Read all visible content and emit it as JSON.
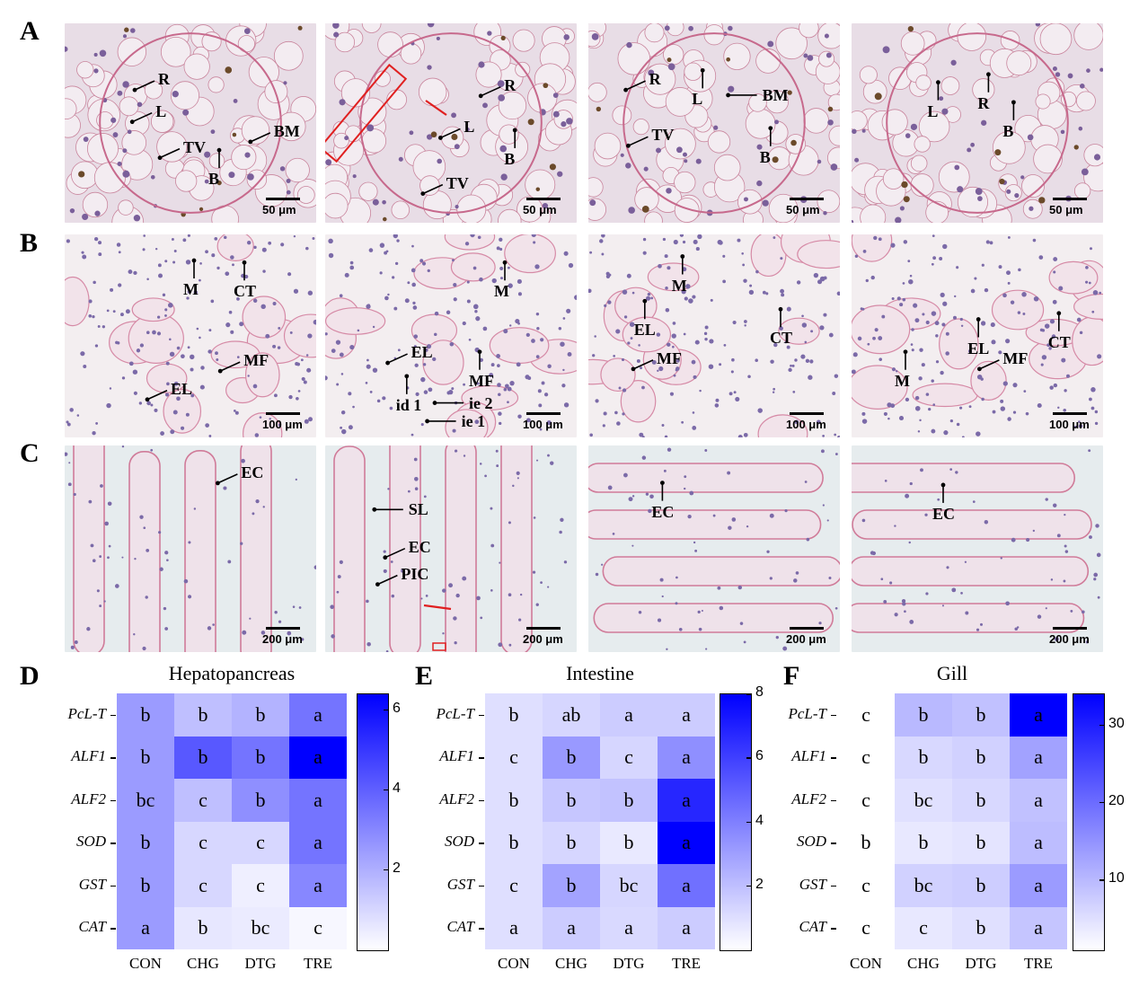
{
  "panel_labels": {
    "A": "A",
    "B": "B",
    "C": "C",
    "D": "D",
    "E": "E",
    "F": "F"
  },
  "micrographs": {
    "A": {
      "scale": "50 μm",
      "images": [
        {
          "labels": [
            "R",
            "L",
            "TV",
            "B",
            "BM"
          ]
        },
        {
          "labels": [
            "R",
            "L",
            "B",
            "TV"
          ]
        },
        {
          "labels": [
            "R",
            "L",
            "TV",
            "BM",
            "B"
          ]
        },
        {
          "labels": [
            "L",
            "R",
            "B"
          ]
        }
      ]
    },
    "B": {
      "scale": "100 μm",
      "images": [
        {
          "labels": [
            "M",
            "CT",
            "MF",
            "EL"
          ]
        },
        {
          "labels": [
            "M",
            "EL",
            "MF",
            "id 1",
            "ie 2",
            "ie 1"
          ]
        },
        {
          "labels": [
            "M",
            "EL",
            "MF",
            "CT"
          ]
        },
        {
          "labels": [
            "M",
            "EL",
            "MF",
            "CT"
          ]
        }
      ]
    },
    "C": {
      "scale": "200 μm",
      "images": [
        {
          "labels": [
            "EC"
          ]
        },
        {
          "labels": [
            "SL",
            "EC",
            "PIC"
          ]
        },
        {
          "labels": [
            "EC"
          ]
        },
        {
          "labels": [
            "EC"
          ]
        }
      ]
    }
  },
  "chart_data": [
    {
      "type": "heatmap",
      "title": "Hepatopancreas",
      "groups": [
        "CON",
        "CHG",
        "DTG",
        "TRE"
      ],
      "genes": [
        "PcL-T",
        "ALF1",
        "ALF2",
        "SOD",
        "GST",
        "CAT"
      ],
      "values": [
        [
          2.5,
          1.6,
          1.9,
          3.5
        ],
        [
          2.5,
          4.2,
          3.5,
          6.4
        ],
        [
          2.5,
          1.6,
          2.8,
          3.5
        ],
        [
          2.5,
          1.0,
          1.0,
          3.5
        ],
        [
          2.5,
          1.0,
          0.4,
          3.0
        ],
        [
          2.5,
          0.6,
          0.5,
          0.2
        ]
      ],
      "letters": [
        [
          "b",
          "b",
          "b",
          "a"
        ],
        [
          "b",
          "b",
          "b",
          "a"
        ],
        [
          "bc",
          "c",
          "b",
          "a"
        ],
        [
          "b",
          "c",
          "c",
          "a"
        ],
        [
          "b",
          "c",
          "c",
          "a"
        ],
        [
          "a",
          "b",
          "bc",
          "c"
        ]
      ],
      "colorbar": {
        "min": 0,
        "max": 6.4,
        "ticks": [
          2,
          4,
          6
        ]
      }
    },
    {
      "type": "heatmap",
      "title": "Intestine",
      "groups": [
        "CON",
        "CHG",
        "DTG",
        "TRE"
      ],
      "genes": [
        "PcL-T",
        "ALF1",
        "ALF2",
        "SOD",
        "GST",
        "CAT"
      ],
      "values": [
        [
          1.0,
          1.3,
          1.6,
          1.6
        ],
        [
          1.0,
          3.2,
          1.3,
          3.5
        ],
        [
          1.0,
          1.8,
          1.9,
          6.8
        ],
        [
          1.0,
          1.3,
          0.7,
          8.0
        ],
        [
          1.0,
          2.9,
          1.3,
          4.5
        ],
        [
          1.0,
          1.6,
          1.2,
          1.6
        ]
      ],
      "letters": [
        [
          "b",
          "ab",
          "a",
          "a"
        ],
        [
          "c",
          "b",
          "c",
          "a"
        ],
        [
          "b",
          "b",
          "b",
          "a"
        ],
        [
          "b",
          "b",
          "b",
          "a"
        ],
        [
          "c",
          "b",
          "bc",
          "a"
        ],
        [
          "a",
          "a",
          "a",
          "a"
        ]
      ],
      "colorbar": {
        "min": 0,
        "max": 8,
        "ticks": [
          2,
          4,
          6,
          8
        ]
      }
    },
    {
      "type": "heatmap",
      "title": "Gill",
      "groups": [
        "CON",
        "CHG",
        "DTG",
        "TRE"
      ],
      "genes": [
        "PcL-T",
        "ALF1",
        "ALF2",
        "SOD",
        "GST",
        "CAT"
      ],
      "values": [
        [
          1.0,
          10.0,
          9.0,
          34.0
        ],
        [
          1.0,
          6.0,
          7.0,
          13.0
        ],
        [
          1.0,
          5.0,
          6.0,
          9.0
        ],
        [
          1.0,
          4.0,
          4.5,
          9.5
        ],
        [
          1.0,
          7.0,
          7.5,
          14.0
        ],
        [
          1.0,
          4.0,
          5.0,
          8.5
        ]
      ],
      "letters": [
        [
          "c",
          "b",
          "b",
          "a"
        ],
        [
          "c",
          "b",
          "b",
          "a"
        ],
        [
          "c",
          "bc",
          "b",
          "a"
        ],
        [
          "b",
          "b",
          "b",
          "a"
        ],
        [
          "c",
          "bc",
          "b",
          "a"
        ],
        [
          "c",
          "c",
          "b",
          "a"
        ]
      ],
      "colorbar": {
        "min": 1,
        "max": 34,
        "ticks": [
          10,
          20,
          30
        ]
      }
    }
  ]
}
